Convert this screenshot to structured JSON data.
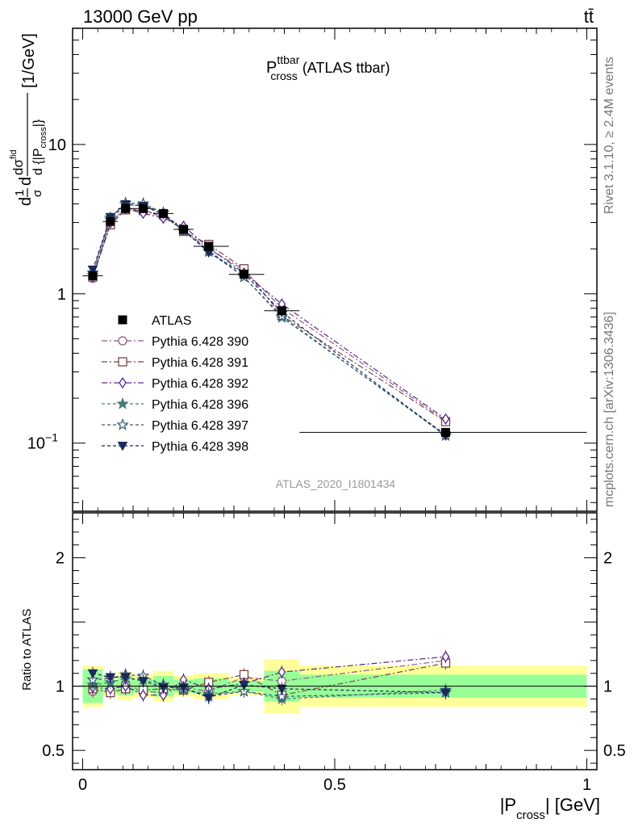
{
  "header": {
    "energy_label": "13000 GeV pp",
    "process_label": "tt̄"
  },
  "side_labels": {
    "rivet": "Rivet 3.1.10, ≥ 2.4M events",
    "mcplots": "mcplots.cern.ch [arXiv:1306.3436]"
  },
  "chart_data": {
    "type": "line",
    "title": {
      "main": "P",
      "superscript": "ttbar",
      "subscript": "cross",
      "suffix": "(ATLAS ttbar)"
    },
    "analysis_tag": "ATLAS_2020_I1801434",
    "xlabel": {
      "open": "|P",
      "sub": "cross",
      "close": "| [GeV]"
    },
    "ylabel_main": {
      "prefix": "d",
      "frac1_num": "1",
      "frac1_den": "σ",
      "mid": "d",
      "frac2_num": "dσ",
      "frac2_num_sup": "fid",
      "frac2_den": "d {|P",
      "frac2_den_sub": "cross",
      "frac2_den_close": "|}",
      "units": "[1/GeV]"
    },
    "ylabel_ratio": "Ratio to ATLAS",
    "xlim": [
      -0.02,
      1.02
    ],
    "ylim_main": [
      0.035,
      60
    ],
    "ylim_ratio": [
      0.35,
      2.35
    ],
    "log_y_main": true,
    "x_ticks": [
      {
        "value": 0,
        "label": "0"
      },
      {
        "value": 0.5,
        "label": "0.5"
      },
      {
        "value": 1,
        "label": "1"
      }
    ],
    "y_ticks_main": [
      {
        "value": 0.1,
        "base": "10",
        "exp": "−1"
      },
      {
        "value": 1,
        "base": "1",
        "exp": ""
      },
      {
        "value": 10,
        "base": "10",
        "exp": ""
      }
    ],
    "y_ticks_ratio": [
      {
        "value": 0.5,
        "label": "0.5"
      },
      {
        "value": 1,
        "label": "1"
      },
      {
        "value": 2,
        "label": "2"
      }
    ],
    "bins": [
      {
        "lo": 0.0,
        "hi": 0.04,
        "x": 0.02
      },
      {
        "lo": 0.04,
        "hi": 0.07,
        "x": 0.055
      },
      {
        "lo": 0.07,
        "hi": 0.1,
        "x": 0.085
      },
      {
        "lo": 0.1,
        "hi": 0.14,
        "x": 0.12
      },
      {
        "lo": 0.14,
        "hi": 0.18,
        "x": 0.16
      },
      {
        "lo": 0.18,
        "hi": 0.22,
        "x": 0.2
      },
      {
        "lo": 0.22,
        "hi": 0.29,
        "x": 0.25
      },
      {
        "lo": 0.29,
        "hi": 0.36,
        "x": 0.32
      },
      {
        "lo": 0.36,
        "hi": 0.43,
        "x": 0.395
      },
      {
        "lo": 0.43,
        "hi": 1.0,
        "x": 0.72
      }
    ],
    "atlas": {
      "name": "ATLAS",
      "values": [
        1.32,
        3.05,
        3.72,
        3.72,
        3.45,
        2.7,
        2.08,
        1.35,
        0.77,
        0.118
      ],
      "band_inner": [
        0.13,
        0.05,
        0.07,
        0.05,
        0.08,
        0.05,
        0.06,
        0.04,
        0.12,
        0.09
      ],
      "band_outer": [
        0.16,
        0.07,
        0.11,
        0.09,
        0.12,
        0.08,
        0.1,
        0.07,
        0.21,
        0.16
      ]
    },
    "series": [
      {
        "name": "Pythia 6.428 390",
        "color": "#8a5a8a",
        "marker": "circle-open",
        "dash": "7,3,2,3",
        "ratio": [
          0.96,
          0.97,
          1.02,
          0.96,
          0.95,
          0.99,
          0.96,
          1.07,
          1.04,
          1.2
        ]
      },
      {
        "name": "Pythia 6.428 391",
        "color": "#7a4545",
        "marker": "square-open",
        "dash": "7,3,2,3",
        "ratio": [
          0.98,
          0.95,
          0.98,
          0.97,
          0.98,
          0.97,
          1.03,
          1.09,
          0.93,
          1.18
        ]
      },
      {
        "name": "Pythia 6.428 392",
        "color": "#5a2a8a",
        "marker": "diamond-open",
        "dash": "7,3,2,3",
        "ratio": [
          0.99,
          0.98,
          1.0,
          0.93,
          0.93,
          1.05,
          0.98,
          1.02,
          1.11,
          1.23
        ]
      },
      {
        "name": "Pythia 6.428 396",
        "color": "#4a7a7a",
        "marker": "star-filled",
        "dash": "4,3",
        "ratio": [
          1.01,
          1.03,
          1.06,
          1.05,
          1.01,
          0.97,
          0.94,
          0.96,
          0.9,
          0.97
        ]
      },
      {
        "name": "Pythia 6.428 397",
        "color": "#3a5a7a",
        "marker": "star-open",
        "dash": "4,3",
        "ratio": [
          1.05,
          1.06,
          1.09,
          1.08,
          1.01,
          0.98,
          0.92,
          0.96,
          0.92,
          0.95
        ]
      },
      {
        "name": "Pythia 6.428 398",
        "color": "#1a2a5a",
        "marker": "triangle-down-filled",
        "dash": "4,3",
        "ratio": [
          1.1,
          1.07,
          1.07,
          1.04,
          0.99,
          0.99,
          0.91,
          1.01,
          0.98,
          0.95
        ]
      }
    ]
  }
}
